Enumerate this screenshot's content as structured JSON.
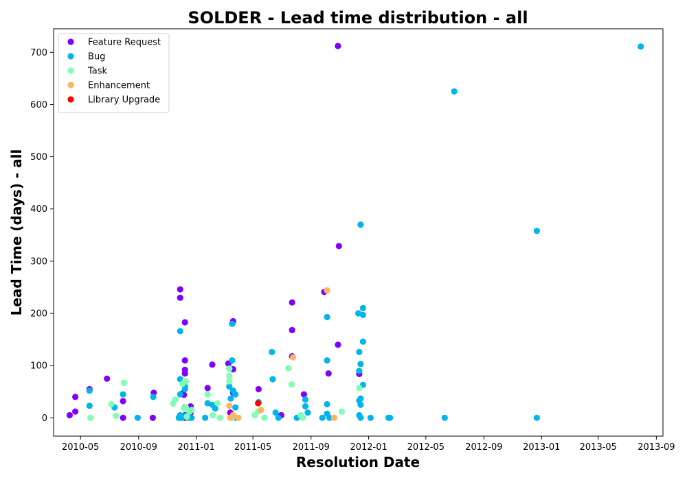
{
  "chart_data": {
    "type": "scatter",
    "title": "SOLDER - Lead time distribution - all",
    "xlabel": "Resolution Date",
    "ylabel": "Lead Time (days) - all",
    "xlim": [
      "2010-03-05",
      "2013-09-15"
    ],
    "ylim": [
      -35,
      745
    ],
    "x_ticks": [
      "2010-05",
      "2010-09",
      "2011-01",
      "2011-05",
      "2011-09",
      "2012-01",
      "2012-05",
      "2012-09",
      "2013-01",
      "2013-05",
      "2013-09"
    ],
    "y_ticks": [
      0,
      100,
      200,
      300,
      400,
      500,
      600,
      700
    ],
    "grid": false,
    "legend_position": "top-left",
    "series": [
      {
        "name": "Feature Request",
        "color": "#8000ff",
        "points": [
          [
            "2010-04-08",
            5
          ],
          [
            "2010-04-20",
            40
          ],
          [
            "2010-04-20",
            12
          ],
          [
            "2010-05-20",
            55
          ],
          [
            "2010-06-26",
            75
          ],
          [
            "2010-07-30",
            32
          ],
          [
            "2010-07-30",
            0
          ],
          [
            "2010-10-01",
            0
          ],
          [
            "2010-10-03",
            48
          ],
          [
            "2010-11-28",
            246
          ],
          [
            "2010-11-28",
            230
          ],
          [
            "2010-12-08",
            183
          ],
          [
            "2010-12-08",
            110
          ],
          [
            "2010-12-08",
            92
          ],
          [
            "2010-12-08",
            85
          ],
          [
            "2010-12-06",
            65
          ],
          [
            "2010-12-06",
            44
          ],
          [
            "2010-12-03",
            47
          ],
          [
            "2010-12-08",
            20
          ],
          [
            "2010-12-08",
            5
          ],
          [
            "2010-12-08",
            0
          ],
          [
            "2010-12-20",
            22
          ],
          [
            "2010-12-20",
            10
          ],
          [
            "2011-01-25",
            57
          ],
          [
            "2011-02-04",
            102
          ],
          [
            "2011-03-10",
            104
          ],
          [
            "2011-03-20",
            185
          ],
          [
            "2011-03-20",
            93
          ],
          [
            "2011-03-20",
            48
          ],
          [
            "2011-03-14",
            10
          ],
          [
            "2011-05-13",
            55
          ],
          [
            "2011-06-30",
            5
          ],
          [
            "2011-07-23",
            221
          ],
          [
            "2011-07-23",
            168
          ],
          [
            "2011-07-23",
            118
          ],
          [
            "2011-08-17",
            45
          ],
          [
            "2011-09-29",
            241
          ],
          [
            "2011-10-08",
            85
          ],
          [
            "2011-10-28",
            712
          ],
          [
            "2011-10-30",
            329
          ],
          [
            "2011-10-28",
            140
          ],
          [
            "2011-12-12",
            84
          ]
        ]
      },
      {
        "name": "Bug",
        "color": "#00b5eb",
        "points": [
          [
            "2010-05-20",
            52
          ],
          [
            "2010-05-20",
            23
          ],
          [
            "2010-07-12",
            20
          ],
          [
            "2010-07-30",
            45
          ],
          [
            "2010-08-30",
            0
          ],
          [
            "2010-10-02",
            40
          ],
          [
            "2010-11-28",
            166
          ],
          [
            "2010-11-28",
            74
          ],
          [
            "2010-11-28",
            45
          ],
          [
            "2010-11-28",
            5
          ],
          [
            "2010-11-25",
            0
          ],
          [
            "2010-12-01",
            0
          ],
          [
            "2010-12-08",
            60
          ],
          [
            "2010-12-08",
            55
          ],
          [
            "2010-12-08",
            3
          ],
          [
            "2010-12-15",
            0
          ],
          [
            "2010-12-15",
            8
          ],
          [
            "2010-12-22",
            0
          ],
          [
            "2011-01-20",
            0
          ],
          [
            "2011-01-25",
            28
          ],
          [
            "2011-02-04",
            25
          ],
          [
            "2011-02-10",
            18
          ],
          [
            "2011-03-12",
            95
          ],
          [
            "2011-03-12",
            60
          ],
          [
            "2011-03-15",
            37
          ],
          [
            "2011-03-18",
            110
          ],
          [
            "2011-03-18",
            180
          ],
          [
            "2011-03-20",
            52
          ],
          [
            "2011-03-25",
            45
          ],
          [
            "2011-03-25",
            20
          ],
          [
            "2011-03-25",
            0
          ],
          [
            "2011-05-13",
            30
          ],
          [
            "2011-06-10",
            126
          ],
          [
            "2011-06-12",
            74
          ],
          [
            "2011-06-18",
            10
          ],
          [
            "2011-06-24",
            0
          ],
          [
            "2011-08-02",
            0
          ],
          [
            "2011-08-20",
            35
          ],
          [
            "2011-08-20",
            22
          ],
          [
            "2011-08-25",
            10
          ],
          [
            "2011-09-25",
            0
          ],
          [
            "2011-10-05",
            193
          ],
          [
            "2011-10-05",
            110
          ],
          [
            "2011-10-05",
            26
          ],
          [
            "2011-10-05",
            8
          ],
          [
            "2011-10-10",
            0
          ],
          [
            "2011-12-10",
            200
          ],
          [
            "2011-12-12",
            126
          ],
          [
            "2011-12-12",
            90
          ],
          [
            "2011-12-15",
            370
          ],
          [
            "2011-12-20",
            210
          ],
          [
            "2011-12-20",
            197
          ],
          [
            "2011-12-20",
            146
          ],
          [
            "2011-12-15",
            103
          ],
          [
            "2011-12-20",
            63
          ],
          [
            "2011-12-15",
            37
          ],
          [
            "2011-12-12",
            33
          ],
          [
            "2011-12-15",
            25
          ],
          [
            "2011-12-12",
            5
          ],
          [
            "2011-12-15",
            0
          ],
          [
            "2012-01-05",
            0
          ],
          [
            "2012-02-12",
            0
          ],
          [
            "2012-02-15",
            0
          ],
          [
            "2012-06-10",
            0
          ],
          [
            "2012-06-30",
            625
          ],
          [
            "2012-12-22",
            358
          ],
          [
            "2012-12-22",
            0
          ],
          [
            "2013-07-30",
            711
          ]
        ]
      },
      {
        "name": "Task",
        "color": "#80ffb4",
        "points": [
          [
            "2010-05-22",
            0
          ],
          [
            "2010-07-05",
            26
          ],
          [
            "2010-07-15",
            4
          ],
          [
            "2010-08-01",
            67
          ],
          [
            "2010-11-13",
            27
          ],
          [
            "2010-11-18",
            35
          ],
          [
            "2010-12-08",
            70
          ],
          [
            "2010-12-10",
            70
          ],
          [
            "2010-12-03",
            65
          ],
          [
            "2010-12-06",
            18
          ],
          [
            "2010-12-10",
            20
          ],
          [
            "2010-12-12",
            2
          ],
          [
            "2010-12-18",
            12
          ],
          [
            "2010-12-22",
            15
          ],
          [
            "2011-01-25",
            45
          ],
          [
            "2011-02-05",
            5
          ],
          [
            "2011-02-15",
            28
          ],
          [
            "2011-02-20",
            0
          ],
          [
            "2011-03-12",
            94
          ],
          [
            "2011-03-12",
            80
          ],
          [
            "2011-03-12",
            70
          ],
          [
            "2011-03-18",
            0
          ],
          [
            "2011-05-05",
            5
          ],
          [
            "2011-05-12",
            12
          ],
          [
            "2011-05-25",
            0
          ],
          [
            "2011-07-15",
            95
          ],
          [
            "2011-07-22",
            64
          ],
          [
            "2011-08-10",
            5
          ],
          [
            "2011-08-15",
            0
          ],
          [
            "2011-11-05",
            12
          ],
          [
            "2011-12-12",
            57
          ]
        ]
      },
      {
        "name": "Enhancement",
        "color": "#ffb360",
        "points": [
          [
            "2011-03-12",
            23
          ],
          [
            "2011-03-14",
            0
          ],
          [
            "2011-03-20",
            5
          ],
          [
            "2011-03-31",
            0
          ],
          [
            "2011-05-18",
            15
          ],
          [
            "2011-07-25",
            116
          ],
          [
            "2011-10-05",
            244
          ],
          [
            "2011-10-20",
            0
          ]
        ]
      },
      {
        "name": "Library Upgrade",
        "color": "#ff0000",
        "points": [
          [
            "2011-05-12",
            28
          ]
        ]
      }
    ]
  }
}
